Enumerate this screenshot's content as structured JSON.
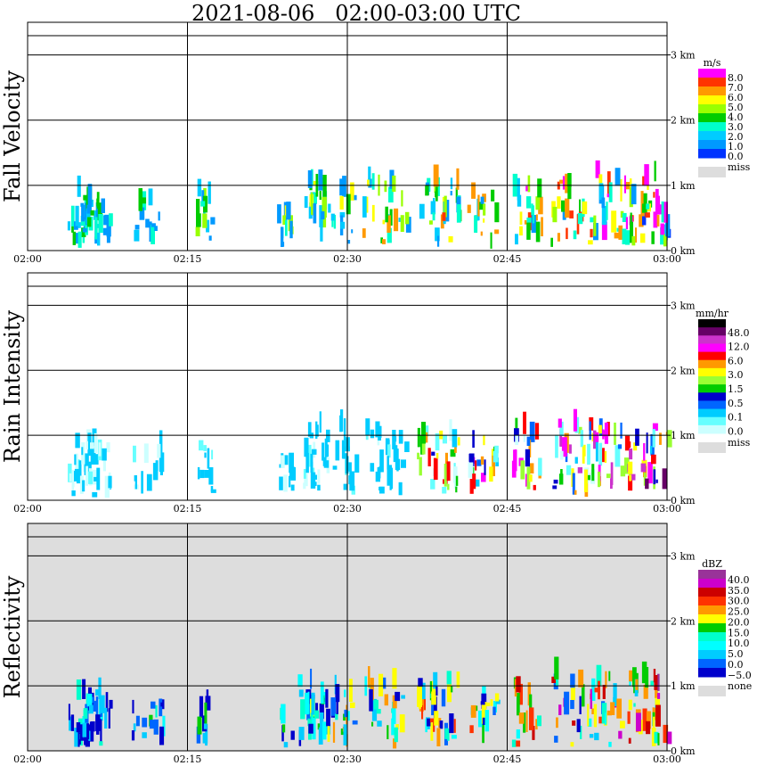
{
  "title": "2021-08-06   02:00-03:00 UTC",
  "chart_data": [
    {
      "type": "heatmap",
      "ylabel": "Fall Velocity",
      "x_ticks": [
        "02:00",
        "02:15",
        "02:30",
        "02:45",
        "03:00"
      ],
      "y_ticks": [
        "0 km",
        "1 km",
        "2 km",
        "3 km"
      ],
      "ylim": [
        0,
        3.5
      ],
      "grid": true,
      "background": "#ffffff",
      "legend": {
        "unit": "m/s",
        "labels": [
          "8.0",
          "7.0",
          "6.0",
          "5.0",
          "4.0",
          "3.0",
          "2.0",
          "1.0",
          "0.0"
        ],
        "colors": [
          "#ff00ff",
          "#ff3300",
          "#ff9900",
          "#ffff00",
          "#99ff00",
          "#00cc00",
          "#00ffcc",
          "#00ccff",
          "#0099ff",
          "#0033ff"
        ],
        "missing_label": "miss",
        "missing_color": "#dddddd"
      }
    },
    {
      "type": "heatmap",
      "ylabel": "Rain Intensity",
      "x_ticks": [
        "02:00",
        "02:15",
        "02:30",
        "02:45",
        "03:00"
      ],
      "y_ticks": [
        "0 km",
        "1 km",
        "2 km",
        "3 km"
      ],
      "ylim": [
        0,
        3.5
      ],
      "grid": true,
      "background": "#ffffff",
      "legend": {
        "unit": "mm/hr",
        "labels": [
          "48.0",
          "12.0",
          "6.0",
          "3.0",
          "1.5",
          "0.5",
          "0.1",
          "0.0"
        ],
        "colors": [
          "#000000",
          "#660066",
          "#cc33cc",
          "#ff00ff",
          "#ff0000",
          "#ff9900",
          "#ffff00",
          "#99ff33",
          "#00cc00",
          "#0000cc",
          "#0066ff",
          "#00ccff",
          "#66ffff",
          "#ccffff"
        ],
        "missing_label": "miss",
        "missing_color": "#dddddd"
      }
    },
    {
      "type": "heatmap",
      "ylabel": "Reflectivity",
      "x_ticks": [
        "02:00",
        "02:15",
        "02:30",
        "02:45",
        "03:00"
      ],
      "y_ticks": [
        "0 km",
        "1 km",
        "2 km",
        "3 km"
      ],
      "ylim": [
        0,
        3.5
      ],
      "grid": true,
      "background": "#dddddd",
      "legend": {
        "unit": "dBZ",
        "labels": [
          "40.0",
          "35.0",
          "30.0",
          "25.0",
          "20.0",
          "15.0",
          "10.0",
          "5.0",
          "0.0",
          "−5.0"
        ],
        "colors": [
          "#993399",
          "#cc00cc",
          "#cc0000",
          "#ff3300",
          "#ff9900",
          "#ffff00",
          "#00cc00",
          "#00ffcc",
          "#00ffff",
          "#00ccff",
          "#0066ff",
          "#0000cc"
        ],
        "missing_label": "none",
        "missing_color": "#dddddd"
      }
    }
  ]
}
